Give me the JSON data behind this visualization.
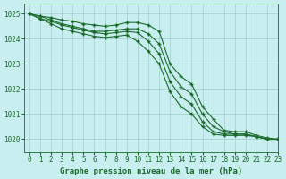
{
  "title": "Graphe pression niveau de la mer (hPa)",
  "bg_color": "#c8eef0",
  "plot_bg_color": "#c8eef0",
  "grid_color": "#a0ccce",
  "line_color": "#1a6b2a",
  "xlim": [
    -0.5,
    23
  ],
  "ylim": [
    1019.5,
    1025.4
  ],
  "yticks": [
    1020,
    1021,
    1022,
    1023,
    1024,
    1025
  ],
  "xticks": [
    0,
    1,
    2,
    3,
    4,
    5,
    6,
    7,
    8,
    9,
    10,
    11,
    12,
    13,
    14,
    15,
    16,
    17,
    18,
    19,
    20,
    21,
    22,
    23
  ],
  "series": [
    [
      1025.0,
      1024.9,
      1024.85,
      1024.75,
      1024.7,
      1024.6,
      1024.55,
      1024.5,
      1024.55,
      1024.65,
      1024.65,
      1024.55,
      1024.3,
      1023.0,
      1022.5,
      1022.2,
      1021.3,
      1020.8,
      1020.35,
      1020.3,
      1020.3,
      1020.15,
      1020.05,
      1020.0
    ],
    [
      1025.0,
      1024.9,
      1024.75,
      1024.6,
      1024.5,
      1024.4,
      1024.3,
      1024.3,
      1024.35,
      1024.4,
      1024.4,
      1024.2,
      1023.8,
      1022.7,
      1022.1,
      1021.8,
      1021.0,
      1020.5,
      1020.3,
      1020.2,
      1020.2,
      1020.1,
      1020.0,
      1020.0
    ],
    [
      1025.0,
      1024.8,
      1024.7,
      1024.55,
      1024.45,
      1024.35,
      1024.25,
      1024.2,
      1024.25,
      1024.3,
      1024.25,
      1023.9,
      1023.4,
      1022.3,
      1021.7,
      1021.4,
      1020.7,
      1020.3,
      1020.2,
      1020.2,
      1020.2,
      1020.1,
      1020.0,
      1020.0
    ],
    [
      1025.0,
      1024.8,
      1024.6,
      1024.4,
      1024.3,
      1024.2,
      1024.1,
      1024.05,
      1024.1,
      1024.15,
      1023.9,
      1023.5,
      1023.0,
      1021.9,
      1021.3,
      1021.0,
      1020.5,
      1020.2,
      1020.15,
      1020.15,
      1020.15,
      1020.1,
      1020.0,
      1020.0
    ]
  ],
  "title_fontsize": 6.5,
  "tick_fontsize": 5.5
}
